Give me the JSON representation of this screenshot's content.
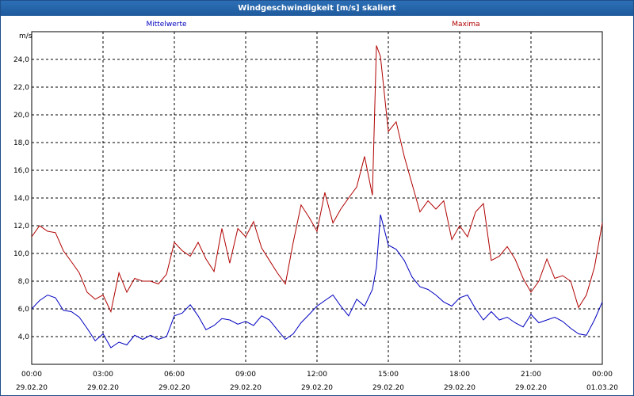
{
  "window": {
    "title": "Windgeschwindigkeit [m/s] skaliert"
  },
  "chart_data": {
    "type": "line",
    "title": "Windgeschwindigkeit [m/s] skaliert",
    "ylabel": "m/s",
    "xlabel": "",
    "ylim": [
      2.0,
      26.0
    ],
    "yticks": [
      "4,0",
      "6,0",
      "8,0",
      "10,0",
      "12,0",
      "14,0",
      "16,0",
      "18,0",
      "20,0",
      "22,0",
      "24,0"
    ],
    "yticks_values": [
      4,
      6,
      8,
      10,
      12,
      14,
      16,
      18,
      20,
      22,
      24
    ],
    "xlim_hours": [
      0,
      24
    ],
    "xticks": [
      {
        "time": "00:00",
        "date": "29.02.20"
      },
      {
        "time": "03:00",
        "date": "29.02.20"
      },
      {
        "time": "06:00",
        "date": "29.02.20"
      },
      {
        "time": "09:00",
        "date": "29.02.20"
      },
      {
        "time": "12:00",
        "date": "29.02.20"
      },
      {
        "time": "15:00",
        "date": "29.02.20"
      },
      {
        "time": "18:00",
        "date": "29.02.20"
      },
      {
        "time": "21:00",
        "date": "29.02.20"
      },
      {
        "time": "00:00",
        "date": "01.03.20"
      }
    ],
    "grid": true,
    "legend": [
      {
        "name": "Mittelwerte",
        "color": "#0000c0",
        "placement": "top-left"
      },
      {
        "name": "Maxima",
        "color": "#b00000",
        "placement": "top-right"
      }
    ],
    "series": [
      {
        "name": "Mittelwerte",
        "color": "#0000c0",
        "x": [
          0,
          0.33,
          0.67,
          1,
          1.33,
          1.67,
          2,
          2.33,
          2.67,
          3,
          3.33,
          3.67,
          4,
          4.33,
          4.67,
          5,
          5.33,
          5.67,
          6,
          6.33,
          6.67,
          7,
          7.33,
          7.67,
          8,
          8.33,
          8.67,
          9,
          9.33,
          9.67,
          10,
          10.33,
          10.67,
          11,
          11.33,
          11.67,
          12,
          12.33,
          12.67,
          13,
          13.33,
          13.67,
          14,
          14.33,
          14.5,
          14.67,
          15,
          15.33,
          15.67,
          16,
          16.33,
          16.67,
          17,
          17.33,
          17.67,
          18,
          18.33,
          18.67,
          19,
          19.33,
          19.67,
          20,
          20.33,
          20.67,
          21,
          21.33,
          21.67,
          22,
          22.33,
          22.67,
          23,
          23.33,
          23.67,
          24
        ],
        "values": [
          6.0,
          6.6,
          7.0,
          6.8,
          5.9,
          5.8,
          5.4,
          4.6,
          3.7,
          4.2,
          3.2,
          3.6,
          3.4,
          4.1,
          3.8,
          4.1,
          3.8,
          4.0,
          5.5,
          5.7,
          6.3,
          5.5,
          4.5,
          4.8,
          5.3,
          5.2,
          4.9,
          5.1,
          4.8,
          5.5,
          5.2,
          4.5,
          3.8,
          4.2,
          5.0,
          5.6,
          6.2,
          6.6,
          7.0,
          6.2,
          5.5,
          6.7,
          6.2,
          7.4,
          9.0,
          12.8,
          10.6,
          10.3,
          9.5,
          8.3,
          7.6,
          7.4,
          7.0,
          6.5,
          6.2,
          6.8,
          7.0,
          6.0,
          5.2,
          5.8,
          5.2,
          5.4,
          5.0,
          4.7,
          5.6,
          5.0,
          5.2,
          5.4,
          5.1,
          4.6,
          4.2,
          4.1,
          5.2,
          6.5
        ]
      },
      {
        "name": "Maxima",
        "color": "#b00000",
        "x": [
          0,
          0.33,
          0.67,
          1,
          1.33,
          1.67,
          2,
          2.33,
          2.67,
          3,
          3.33,
          3.67,
          4,
          4.33,
          4.67,
          5,
          5.33,
          5.67,
          6,
          6.33,
          6.67,
          7,
          7.33,
          7.67,
          8,
          8.33,
          8.67,
          9,
          9.33,
          9.67,
          10,
          10.33,
          10.67,
          11,
          11.33,
          11.67,
          12,
          12.33,
          12.67,
          13,
          13.33,
          13.67,
          14,
          14.33,
          14.5,
          14.67,
          15,
          15.33,
          15.67,
          16,
          16.33,
          16.67,
          17,
          17.33,
          17.67,
          18,
          18.33,
          18.67,
          19,
          19.33,
          19.67,
          20,
          20.33,
          20.67,
          21,
          21.33,
          21.67,
          22,
          22.33,
          22.67,
          23,
          23.33,
          23.67,
          24
        ],
        "values": [
          11.2,
          12.0,
          11.6,
          11.5,
          10.2,
          9.4,
          8.6,
          7.2,
          6.7,
          7.0,
          5.8,
          8.6,
          7.2,
          8.2,
          8.0,
          8.0,
          7.8,
          8.5,
          10.8,
          10.2,
          9.8,
          10.8,
          9.6,
          8.7,
          11.8,
          9.3,
          11.8,
          11.2,
          12.3,
          10.4,
          9.5,
          8.6,
          7.8,
          10.8,
          13.5,
          12.6,
          11.6,
          14.4,
          12.2,
          13.2,
          14.0,
          14.8,
          17.0,
          14.2,
          25.0,
          24.2,
          18.8,
          19.5,
          17.0,
          15.0,
          13.0,
          13.8,
          13.2,
          13.8,
          11.0,
          12.0,
          11.2,
          13.0,
          13.6,
          9.5,
          9.8,
          10.5,
          9.6,
          8.2,
          7.2,
          8.0,
          9.6,
          8.2,
          8.4,
          8.0,
          6.1,
          7.0,
          9.0,
          12.2
        ]
      }
    ]
  }
}
